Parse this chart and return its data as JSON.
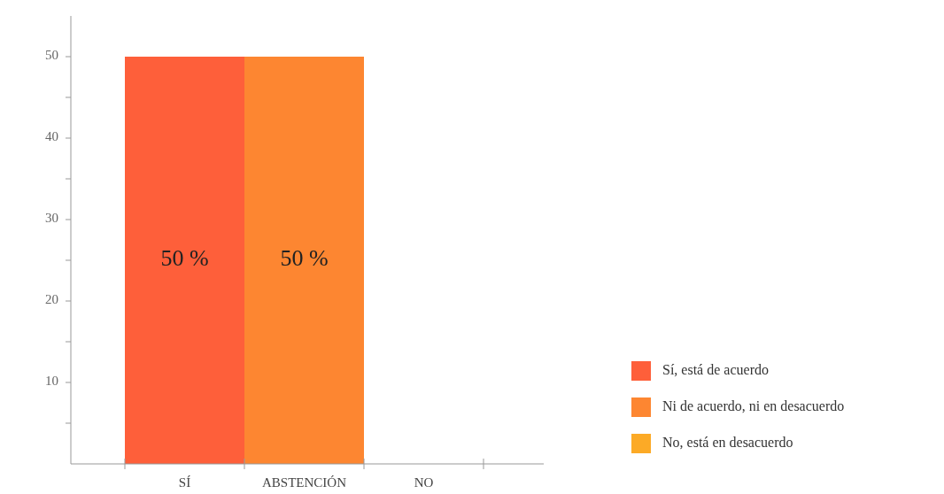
{
  "chart_data": {
    "type": "bar",
    "categories": [
      "SÍ",
      "ABSTENCIÓN",
      "NO"
    ],
    "series": [
      {
        "name": "Sí, está de acuerdo",
        "color": "#fe5f3a",
        "values": [
          50,
          null,
          null
        ],
        "value_labels": [
          "50 %",
          null,
          null
        ]
      },
      {
        "name": "Ni de acuerdo, ni en desacuerdo",
        "color": "#fd8631",
        "values": [
          null,
          50,
          null
        ],
        "value_labels": [
          null,
          "50 %",
          null
        ]
      },
      {
        "name": "No, está en desacuerdo",
        "color": "#fcaa26",
        "values": [
          null,
          null,
          0
        ],
        "value_labels": [
          null,
          null,
          null
        ]
      }
    ],
    "ylim": [
      0,
      55
    ],
    "yticks": [
      {
        "value": 5,
        "label": null
      },
      10,
      {
        "value": 15,
        "label": null
      },
      20,
      {
        "value": 25,
        "label": null
      },
      30,
      {
        "value": 35,
        "label": null
      },
      40,
      {
        "value": 45,
        "label": null
      },
      50
    ],
    "grid": false,
    "legend": "right"
  }
}
